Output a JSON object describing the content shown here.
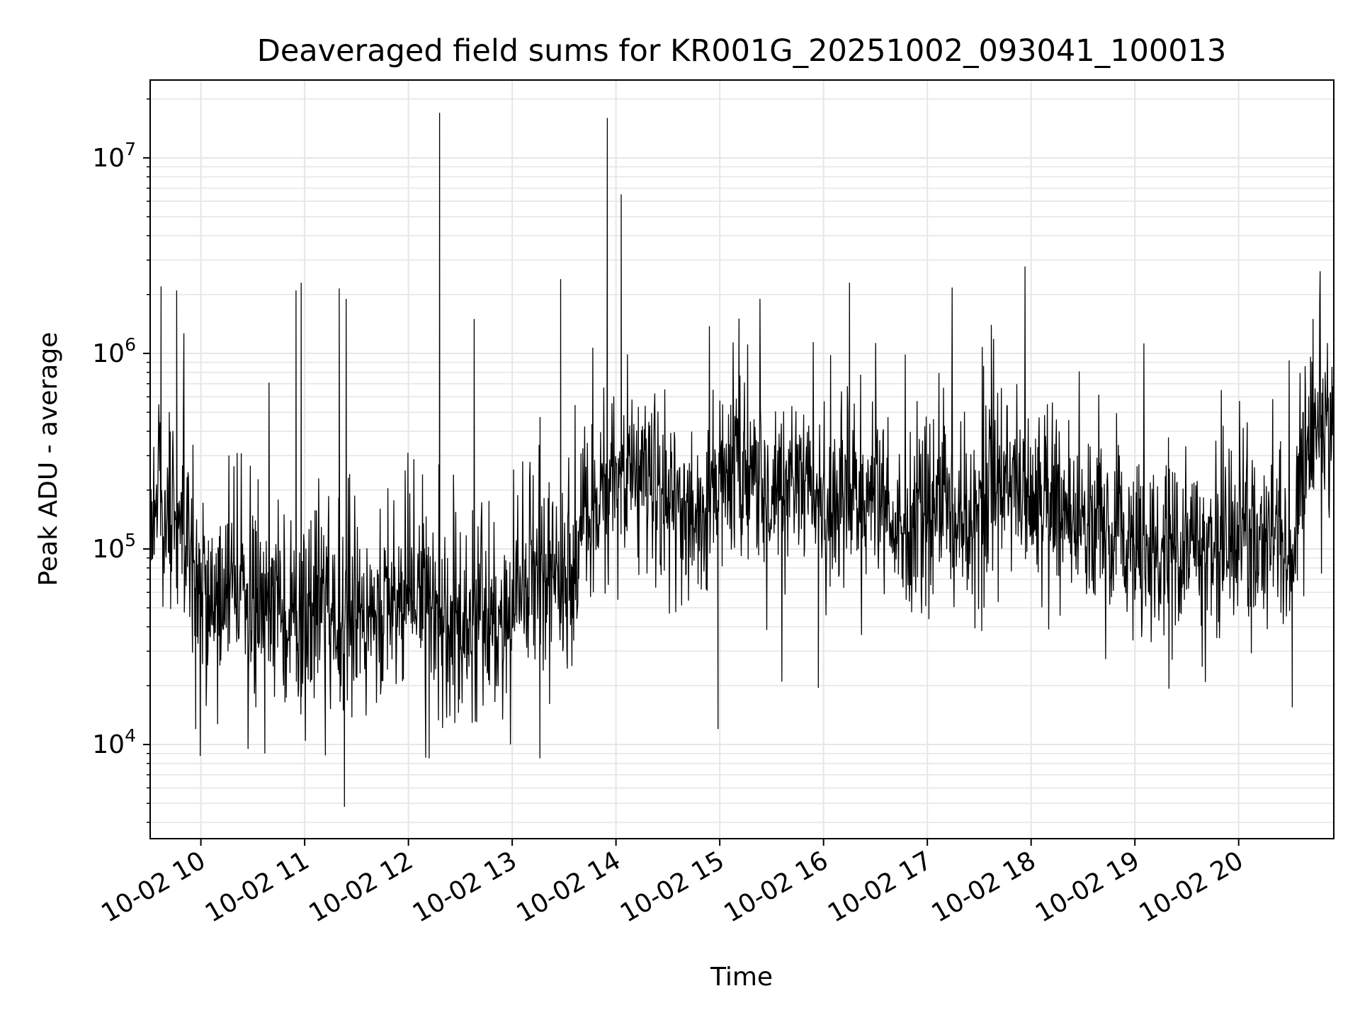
{
  "chart_data": {
    "type": "line",
    "title": "Deaveraged field sums for KR001G_20251002_093041_100013",
    "xlabel": "Time",
    "ylabel": "Peak ADU - average",
    "yscale": "log",
    "xlim": [
      "2025-10-02T09:30:41",
      "2025-10-02T20:55:00"
    ],
    "ylim": [
      3300,
      25000000
    ],
    "grid": true,
    "line_color": "#000000",
    "x_ticks": [
      "10-02 10",
      "10-02 11",
      "10-02 12",
      "10-02 13",
      "10-02 14",
      "10-02 15",
      "10-02 16",
      "10-02 17",
      "10-02 18",
      "10-02 19",
      "10-02 20"
    ],
    "y_ticks": [
      {
        "base": "10",
        "exp": "4"
      },
      {
        "base": "10",
        "exp": "5"
      },
      {
        "base": "10",
        "exp": "6"
      },
      {
        "base": "10",
        "exp": "7"
      }
    ],
    "series": [
      {
        "x": [
          "09:31",
          "09:36",
          "09:42",
          "09:48",
          "09:55",
          "10:00",
          "10:10",
          "10:20",
          "10:30",
          "10:40",
          "10:50",
          "11:00",
          "11:10",
          "11:20",
          "11:30",
          "11:40",
          "11:50",
          "12:00",
          "12:10",
          "12:20",
          "12:30",
          "12:40",
          "12:50",
          "13:00",
          "13:10",
          "13:20",
          "13:30",
          "13:40",
          "13:50",
          "14:00",
          "14:10",
          "14:20",
          "14:30",
          "14:40",
          "14:50",
          "15:00",
          "15:10",
          "15:20",
          "15:30",
          "15:40",
          "15:50",
          "16:00",
          "16:10",
          "16:20",
          "16:30",
          "16:40",
          "16:50",
          "17:00",
          "17:10",
          "17:20",
          "17:30",
          "17:40",
          "17:50",
          "18:00",
          "18:10",
          "18:20",
          "18:30",
          "18:40",
          "18:50",
          "19:00",
          "19:10",
          "19:20",
          "19:30",
          "19:40",
          "19:50",
          "20:00",
          "20:10",
          "20:20",
          "20:30",
          "20:40",
          "20:50"
        ],
        "y": [
          150000,
          250000,
          110000,
          140000,
          90000,
          60000,
          55000,
          70000,
          45000,
          55000,
          40000,
          35000,
          50000,
          45000,
          40000,
          50000,
          55000,
          60000,
          70000,
          35000,
          45000,
          55000,
          40000,
          60000,
          70000,
          80000,
          55000,
          120000,
          200000,
          220000,
          230000,
          200000,
          180000,
          160000,
          150000,
          250000,
          280000,
          200000,
          170000,
          220000,
          280000,
          150000,
          200000,
          180000,
          170000,
          150000,
          130000,
          160000,
          150000,
          130000,
          180000,
          220000,
          200000,
          190000,
          170000,
          140000,
          130000,
          120000,
          110000,
          110000,
          100000,
          100000,
          90000,
          100000,
          110000,
          120000,
          100000,
          110000,
          100000,
          400000,
          500000
        ]
      }
    ],
    "spikes": [
      {
        "x": "09:37",
        "y": 2200000
      },
      {
        "x": "09:46",
        "y": 2100000
      },
      {
        "x": "10:55",
        "y": 2100000
      },
      {
        "x": "10:58",
        "y": 2300000
      },
      {
        "x": "11:20",
        "y": 2150000
      },
      {
        "x": "11:24",
        "y": 1900000
      },
      {
        "x": "12:18",
        "y": 17000000
      },
      {
        "x": "12:38",
        "y": 1500000
      },
      {
        "x": "13:28",
        "y": 2400000
      },
      {
        "x": "13:55",
        "y": 16000000
      },
      {
        "x": "14:03",
        "y": 6500000
      },
      {
        "x": "16:15",
        "y": 2300000
      },
      {
        "x": "17:37",
        "y": 1400000
      },
      {
        "x": "20:43",
        "y": 1500000
      }
    ],
    "dips": [
      {
        "x": "09:57",
        "y": 12000
      },
      {
        "x": "10:37",
        "y": 9000
      },
      {
        "x": "11:12",
        "y": 8800
      },
      {
        "x": "11:23",
        "y": 4800
      },
      {
        "x": "12:12",
        "y": 8500
      },
      {
        "x": "13:16",
        "y": 8500
      },
      {
        "x": "14:59",
        "y": 12000
      },
      {
        "x": "15:57",
        "y": 19500
      },
      {
        "x": "20:31",
        "y": 15500
      }
    ]
  }
}
